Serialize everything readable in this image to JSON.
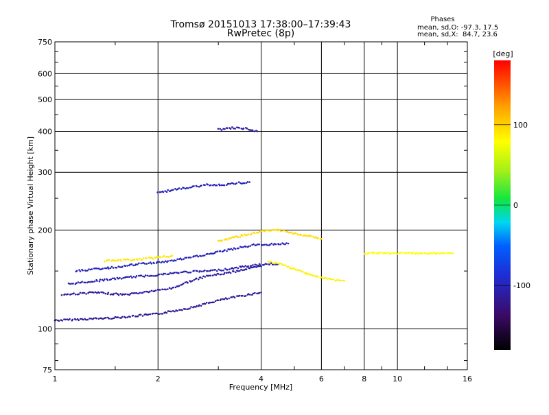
{
  "chart_data": {
    "type": "scatter",
    "title": "Tromsø 20151013 17:38:00–17:39:43",
    "subtitle": "RwPretec (8p)",
    "xlabel": "Frequency [MHz]",
    "ylabel": "Stationary phase Virtual Height [km]",
    "xscale": "log",
    "yscale": "log",
    "xlim": [
      1,
      16
    ],
    "ylim": [
      75,
      750
    ],
    "grid": true,
    "x_ticks": [
      1,
      2,
      4,
      6,
      8,
      10,
      16
    ],
    "y_ticks": [
      75,
      100,
      200,
      300,
      400,
      500,
      600,
      750
    ],
    "stats_title": "Phases",
    "stats": [
      "mean, sd,O: -97.3, 17.5",
      "mean, sd,X:  84.7, 23.6"
    ],
    "colorbar": {
      "label": "[deg]",
      "ticks": [
        100,
        0,
        -100
      ],
      "range": [
        -180,
        180
      ]
    },
    "traces": [
      {
        "x": [
          1.0,
          1.5,
          2.0,
          2.5,
          3.0,
          3.5,
          4.0
        ],
        "y": [
          106,
          108,
          111,
          116,
          122,
          126,
          129
        ],
        "phase": -115
      },
      {
        "x": [
          1.05,
          1.3,
          1.6,
          1.9,
          2.2,
          2.5,
          2.8,
          3.2,
          3.6,
          4.0
        ],
        "y": [
          127,
          129,
          127,
          130,
          133,
          140,
          145,
          148,
          152,
          155
        ],
        "phase": -110
      },
      {
        "x": [
          1.1,
          1.4,
          1.7,
          2.0,
          2.4,
          2.8,
          3.2,
          3.6,
          4.0,
          4.5
        ],
        "y": [
          137,
          141,
          144,
          146,
          149,
          150,
          152,
          155,
          157,
          158
        ],
        "phase": -105
      },
      {
        "x": [
          1.15,
          1.5,
          1.8,
          2.1,
          2.5,
          2.9,
          3.3,
          3.8,
          4.3,
          4.8
        ],
        "y": [
          150,
          154,
          158,
          160,
          165,
          170,
          175,
          180,
          181,
          182
        ],
        "phase": -100
      },
      {
        "x": [
          1.4,
          1.6,
          1.8,
          2.0,
          2.2
        ],
        "y": [
          161,
          162,
          163,
          165,
          167
        ],
        "phase": 90
      },
      {
        "x": [
          4.2,
          4.6,
          5.0,
          5.5,
          6.0,
          6.5,
          7.0
        ],
        "y": [
          160,
          157,
          152,
          147,
          143,
          141,
          140
        ],
        "phase": 85
      },
      {
        "x": [
          3.0,
          3.5,
          4.0,
          4.5,
          5.0,
          5.5,
          6.0
        ],
        "y": [
          185,
          192,
          198,
          200,
          195,
          192,
          188
        ],
        "phase": 95
      },
      {
        "x": [
          2.0,
          2.2,
          2.5,
          2.8,
          3.1,
          3.4,
          3.7
        ],
        "y": [
          260,
          265,
          270,
          275,
          275,
          278,
          280
        ],
        "phase": -100
      },
      {
        "x": [
          3.0,
          3.3,
          3.6,
          3.9
        ],
        "y": [
          405,
          410,
          408,
          400
        ],
        "phase": -110
      },
      {
        "x": [
          8.0,
          9.0,
          10.0,
          11.5,
          13.0,
          14.5
        ],
        "y": [
          170,
          170,
          170,
          170,
          170,
          170
        ],
        "phase": 80
      }
    ]
  }
}
